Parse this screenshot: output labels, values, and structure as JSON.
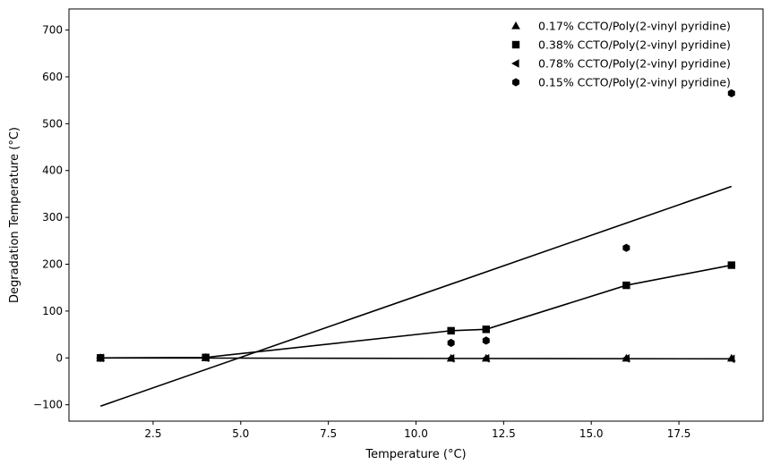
{
  "chart_data": {
    "type": "scatter",
    "xlabel": "Temperature (°C)",
    "ylabel": "Degradation Temperature (°C)",
    "xlim": [
      0.1,
      19.9
    ],
    "ylim": [
      -135,
      745
    ],
    "xticks": [
      2.5,
      5.0,
      7.5,
      10.0,
      12.5,
      15.0,
      17.5
    ],
    "xtick_labels": [
      "2.5",
      "5.0",
      "7.5",
      "10.0",
      "12.5",
      "15.0",
      "17.5"
    ],
    "yticks": [
      -100,
      0,
      100,
      200,
      300,
      400,
      500,
      600,
      700
    ],
    "ytick_labels": [
      "−100",
      "0",
      "100",
      "200",
      "300",
      "400",
      "500",
      "600",
      "700"
    ],
    "legend_position": "top-right",
    "grid": false,
    "series": [
      {
        "name": "0.17% CCTO/Poly(2-vinyl pyridine)",
        "marker": "triangle-up",
        "x": [
          1,
          4,
          11,
          12,
          16,
          19
        ],
        "y": [
          0,
          0,
          -1,
          -1,
          -1,
          -1
        ]
      },
      {
        "name": "0.38% CCTO/Poly(2-vinyl pyridine)",
        "marker": "square",
        "x": [
          1,
          4,
          11,
          12,
          16,
          19
        ],
        "y": [
          0,
          1,
          58,
          61,
          155,
          198
        ]
      },
      {
        "name": "0.78% CCTO/Poly(2-vinyl pyridine)",
        "marker": "triangle-left",
        "x": [
          1,
          4,
          11,
          12,
          16,
          19
        ],
        "y": [
          0,
          0,
          -1,
          -1,
          -1,
          -2
        ]
      },
      {
        "name": "0.15% CCTO/Poly(2-vinyl pyridine)",
        "marker": "hexagon",
        "x": [
          1,
          4,
          11,
          12,
          16,
          19
        ],
        "y": [
          0,
          1,
          32,
          37,
          235,
          565
        ]
      }
    ],
    "lines": [
      {
        "x": [
          1,
          19
        ],
        "y": [
          -103,
          366
        ]
      },
      {
        "x": [
          1,
          4,
          11,
          12,
          16,
          19
        ],
        "y": [
          0,
          1,
          58,
          61,
          155,
          198
        ]
      },
      {
        "x": [
          1,
          19
        ],
        "y": [
          0,
          -2
        ]
      }
    ],
    "colors": {
      "marks": "#000000",
      "background": "#ffffff"
    }
  }
}
